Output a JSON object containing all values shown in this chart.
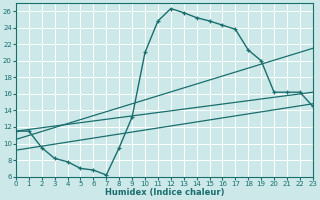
{
  "xlabel": "Humidex (Indice chaleur)",
  "bg_color": "#cce8e8",
  "line_color": "#1a6e6e",
  "grid_color": "#ffffff",
  "xlim": [
    0,
    23
  ],
  "ylim": [
    6,
    27
  ],
  "yticks": [
    6,
    8,
    10,
    12,
    14,
    16,
    18,
    20,
    22,
    24,
    26
  ],
  "xticks": [
    0,
    1,
    2,
    3,
    4,
    5,
    6,
    7,
    8,
    9,
    10,
    11,
    12,
    13,
    14,
    15,
    16,
    17,
    18,
    19,
    20,
    21,
    22,
    23
  ],
  "curve1_x": [
    0,
    1,
    2,
    3,
    4,
    5,
    6,
    7,
    8,
    9,
    10,
    11,
    12,
    13,
    14,
    15,
    16,
    17,
    18,
    19,
    20,
    21,
    22,
    23
  ],
  "curve1_y": [
    11.5,
    11.5,
    9.5,
    8.2,
    7.8,
    7.0,
    6.8,
    6.2,
    9.5,
    13.2,
    21.0,
    24.8,
    26.3,
    25.8,
    25.2,
    24.8,
    24.3,
    23.8,
    21.3,
    20.0,
    16.2,
    16.2,
    16.2,
    14.5
  ],
  "line1_x": [
    0,
    23
  ],
  "line1_y": [
    11.5,
    16.2
  ],
  "line2_x": [
    0,
    23
  ],
  "line2_y": [
    10.5,
    21.5
  ],
  "line3_x": [
    0,
    23
  ],
  "line3_y": [
    9.2,
    14.8
  ]
}
